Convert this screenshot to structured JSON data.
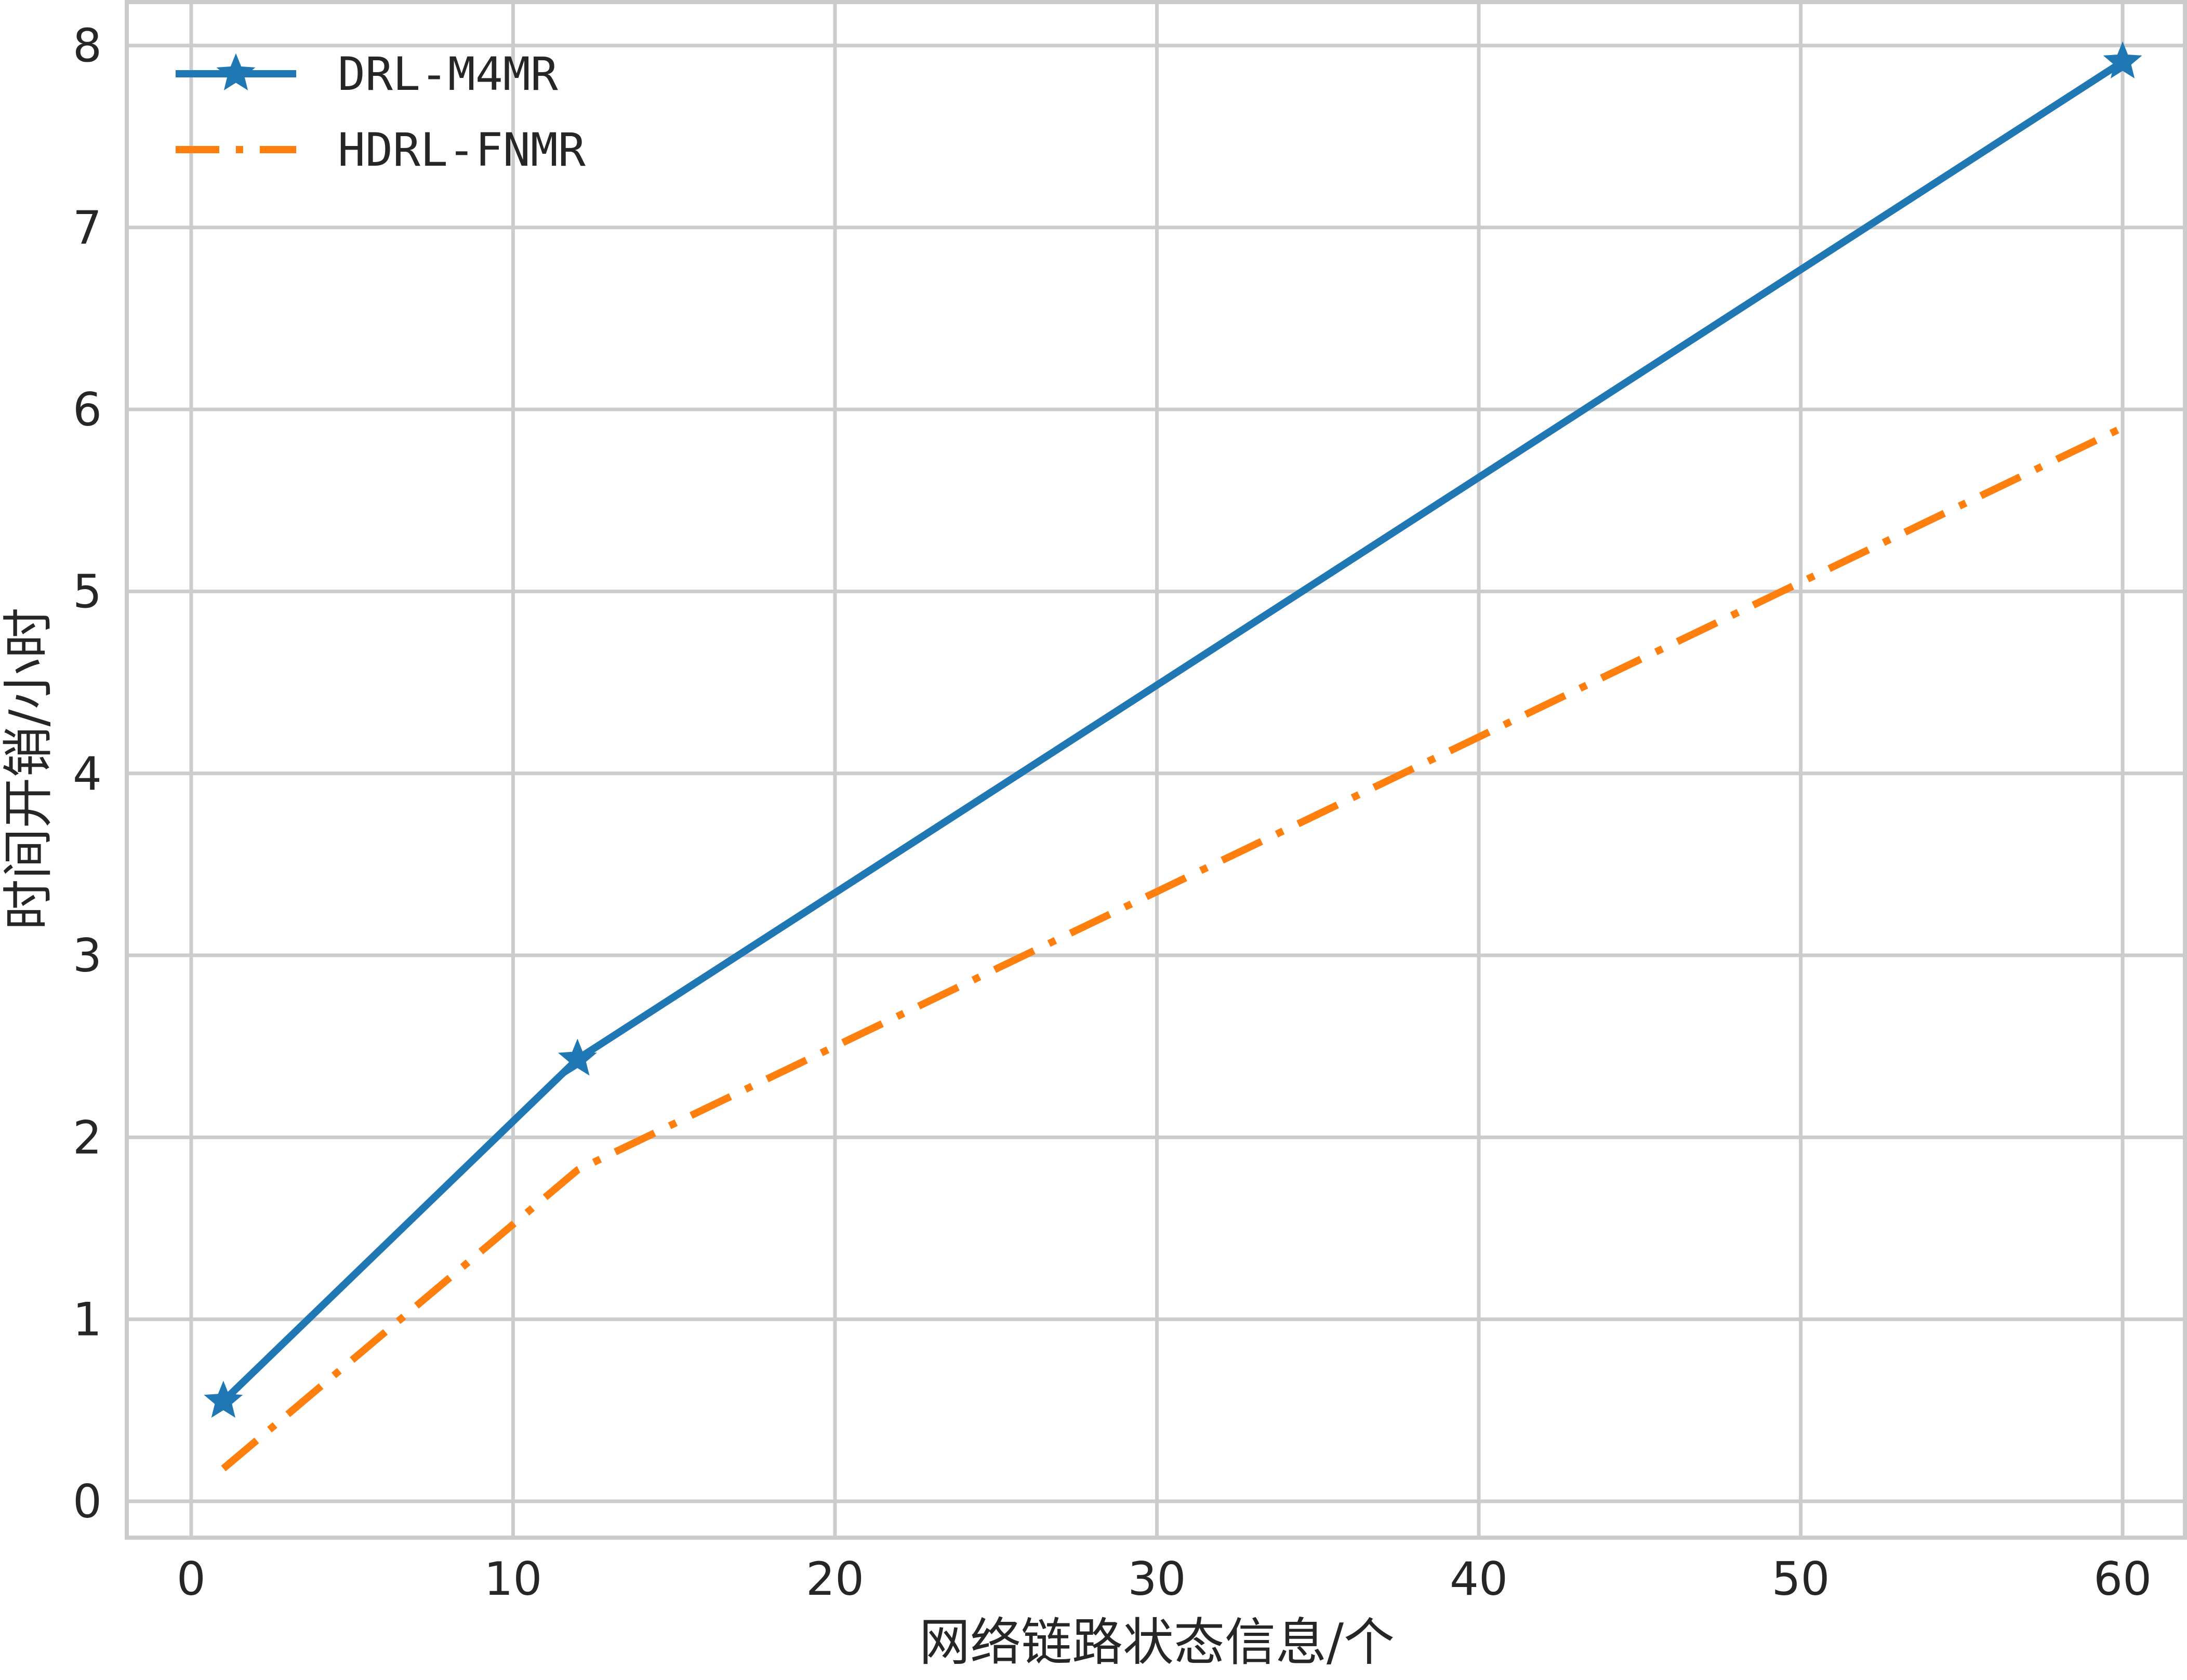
{
  "chart_data": {
    "type": "line",
    "title": "",
    "xlabel": "网络链路状态信息/个",
    "ylabel": "时间开销/小时",
    "xlim": [
      -2,
      62
    ],
    "ylim": [
      -0.2,
      8.25
    ],
    "xticks": [
      0,
      10,
      20,
      30,
      40,
      50,
      60
    ],
    "yticks": [
      0,
      1,
      2,
      3,
      4,
      5,
      6,
      7,
      8
    ],
    "xtick_labels": [
      "0",
      "10",
      "20",
      "30",
      "40",
      "50",
      "60"
    ],
    "ytick_labels": [
      "0",
      "1",
      "2",
      "3",
      "4",
      "5",
      "6",
      "7",
      "8"
    ],
    "grid": true,
    "legend_position": "top-left",
    "series": [
      {
        "name": "DRL-M4MR",
        "x": [
          1,
          12,
          60
        ],
        "values": [
          0.55,
          2.43,
          7.91
        ],
        "color": "#1f77b4",
        "line_style": "solid",
        "marker": "star"
      },
      {
        "name": "HDRL-FNMR",
        "x": [
          1,
          12,
          60
        ],
        "values": [
          0.18,
          1.82,
          5.9
        ],
        "color": "#ff7f0e",
        "line_style": "dashdot",
        "marker": "none"
      }
    ]
  }
}
